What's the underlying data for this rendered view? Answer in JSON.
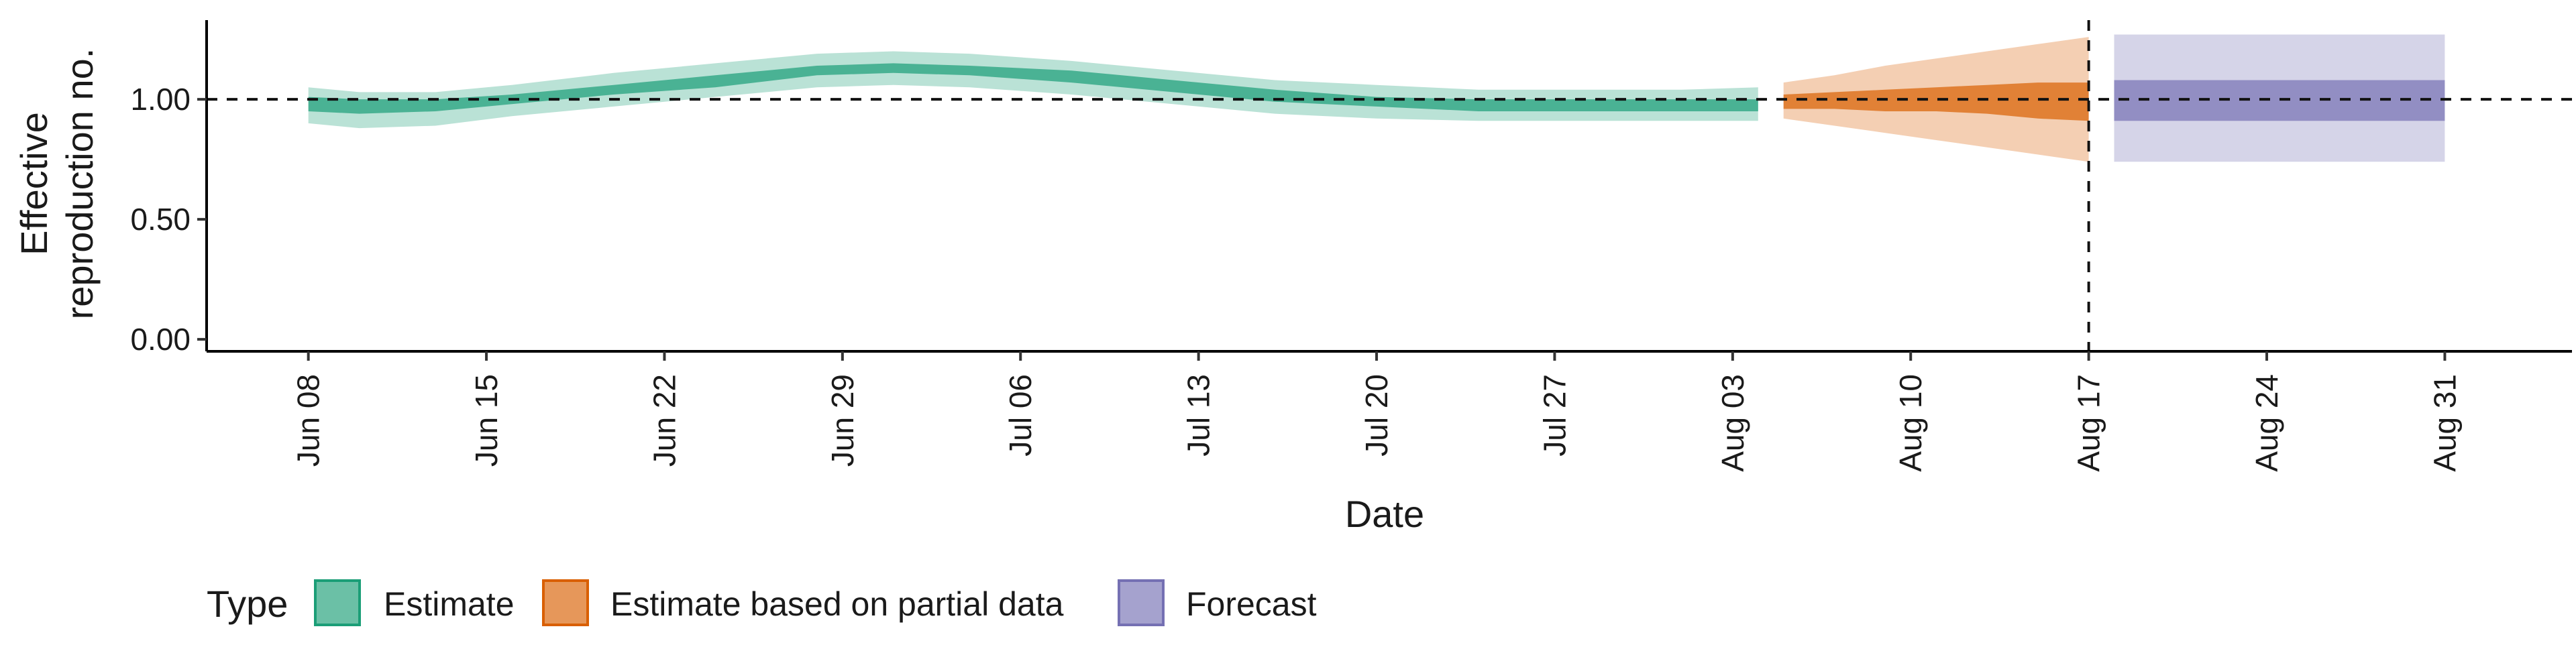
{
  "chart_data": {
    "type": "area",
    "xlabel": "Date",
    "ylabel_lines": [
      "Effective",
      "reproduction no."
    ],
    "y_ticks": [
      "0.00",
      "0.50",
      "1.00"
    ],
    "y_tick_values": [
      0,
      0.5,
      1.0
    ],
    "ylim": [
      -0.05,
      1.33
    ],
    "x_ticks": [
      "Jun 08",
      "Jun 15",
      "Jun 22",
      "Jun 29",
      "Jul 06",
      "Jul 13",
      "Jul 20",
      "Jul 27",
      "Aug 03",
      "Aug 10",
      "Aug 17",
      "Aug 24",
      "Aug 31"
    ],
    "x_tick_dates": [
      "2020-06-08",
      "2020-06-15",
      "2020-06-22",
      "2020-06-29",
      "2020-07-06",
      "2020-07-13",
      "2020-07-20",
      "2020-07-27",
      "2020-08-03",
      "2020-08-10",
      "2020-08-17",
      "2020-08-24",
      "2020-08-31"
    ],
    "xlim": [
      "2020-06-04",
      "2020-09-05"
    ],
    "reference_line_y": 1.0,
    "reference_line_date": "2020-08-17",
    "grid": false,
    "legend": {
      "title": "Type",
      "position": "bottom-left",
      "entries": [
        "Estimate",
        "Estimate based on partial data",
        "Forecast"
      ]
    },
    "series": [
      {
        "name": "Estimate",
        "color_fill": "#1b9e77",
        "color_outer_alpha": 0.3,
        "color_inner_alpha": 0.7,
        "x": [
          "2020-06-08",
          "2020-06-10",
          "2020-06-13",
          "2020-06-16",
          "2020-06-20",
          "2020-06-24",
          "2020-06-28",
          "2020-07-01",
          "2020-07-04",
          "2020-07-08",
          "2020-07-12",
          "2020-07-16",
          "2020-07-20",
          "2020-07-24",
          "2020-07-28",
          "2020-08-01",
          "2020-08-04"
        ],
        "median": [
          0.98,
          0.97,
          0.98,
          1.0,
          1.04,
          1.07,
          1.12,
          1.13,
          1.12,
          1.1,
          1.05,
          1.02,
          0.99,
          0.97,
          0.97,
          0.97,
          0.98
        ],
        "lower_90": [
          0.9,
          0.88,
          0.89,
          0.93,
          0.97,
          1.01,
          1.05,
          1.06,
          1.05,
          1.02,
          0.98,
          0.94,
          0.92,
          0.91,
          0.91,
          0.91,
          0.91
        ],
        "upper_90": [
          1.05,
          1.03,
          1.03,
          1.06,
          1.11,
          1.15,
          1.19,
          1.2,
          1.19,
          1.16,
          1.12,
          1.08,
          1.06,
          1.04,
          1.04,
          1.04,
          1.05
        ],
        "lower_50": [
          0.95,
          0.94,
          0.95,
          0.98,
          1.02,
          1.05,
          1.1,
          1.11,
          1.1,
          1.07,
          1.03,
          0.99,
          0.97,
          0.95,
          0.95,
          0.95,
          0.95
        ],
        "upper_50": [
          1.01,
          1.0,
          1.0,
          1.02,
          1.06,
          1.1,
          1.14,
          1.15,
          1.14,
          1.12,
          1.08,
          1.04,
          1.01,
          1.0,
          1.0,
          1.0,
          1.0
        ]
      },
      {
        "name": "Estimate based on partial data",
        "color_fill": "#d95f02",
        "color_outer_alpha": 0.3,
        "color_inner_alpha": 0.7,
        "x": [
          "2020-08-05",
          "2020-08-07",
          "2020-08-09",
          "2020-08-11",
          "2020-08-13",
          "2020-08-15",
          "2020-08-17"
        ],
        "median": [
          0.99,
          0.99,
          1.0,
          1.0,
          1.0,
          0.99,
          0.99
        ],
        "lower_90": [
          0.92,
          0.89,
          0.86,
          0.83,
          0.8,
          0.77,
          0.74
        ],
        "upper_90": [
          1.07,
          1.1,
          1.14,
          1.17,
          1.2,
          1.23,
          1.26
        ],
        "lower_50": [
          0.96,
          0.96,
          0.95,
          0.95,
          0.94,
          0.92,
          0.91
        ],
        "upper_50": [
          1.02,
          1.03,
          1.04,
          1.05,
          1.06,
          1.07,
          1.07
        ]
      },
      {
        "name": "Forecast",
        "color_fill": "#7570b3",
        "color_outer_alpha": 0.3,
        "color_inner_alpha": 0.7,
        "x": [
          "2020-08-18",
          "2020-08-31"
        ],
        "median": [
          0.99,
          0.99
        ],
        "lower_90": [
          0.74,
          0.74
        ],
        "upper_90": [
          1.27,
          1.27
        ],
        "lower_50": [
          0.91,
          0.91
        ],
        "upper_50": [
          1.08,
          1.08
        ]
      }
    ]
  }
}
